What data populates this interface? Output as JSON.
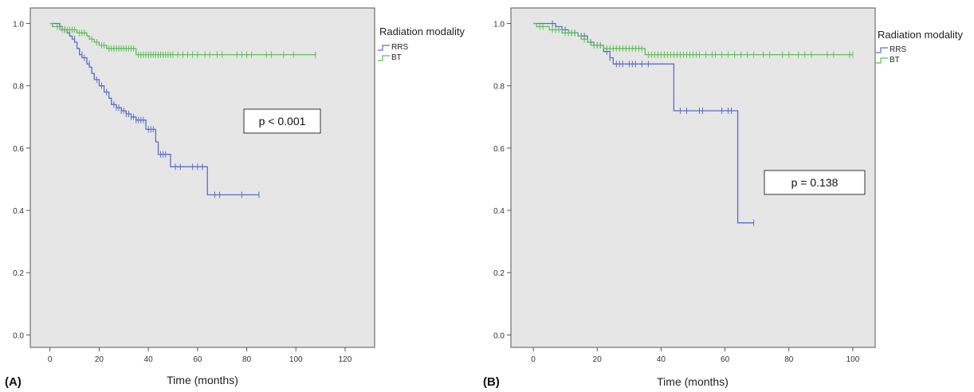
{
  "colors": {
    "plot_bg": "#e6e6e6",
    "frame": "#555555",
    "rrs": "#5b6ec9",
    "bt": "#5fbf58"
  },
  "chart_data": [
    {
      "type": "line",
      "panel_label": "(A)",
      "xlabel": "Time (months)",
      "ylabel": "",
      "xlim": [
        -8,
        132
      ],
      "ylim": [
        -0.04,
        1.05
      ],
      "xticks": [
        0,
        20,
        40,
        60,
        80,
        100,
        120
      ],
      "yticks": [
        "0.0",
        "0.2",
        "0.4",
        "0.6",
        "0.8",
        "1.0"
      ],
      "grid": false,
      "legend": {
        "title": "Radiation modality",
        "placement": "right-outside",
        "entries": [
          "RRS",
          "BT"
        ]
      },
      "annotation": "p < 0.001",
      "series": [
        {
          "name": "RRS",
          "steps": [
            [
              0,
              1.0
            ],
            [
              4,
              0.99
            ],
            [
              5,
              0.98
            ],
            [
              7,
              0.97
            ],
            [
              8,
              0.96
            ],
            [
              9,
              0.95
            ],
            [
              10,
              0.94
            ],
            [
              11,
              0.92
            ],
            [
              12,
              0.9
            ],
            [
              13,
              0.89
            ],
            [
              15,
              0.87
            ],
            [
              16,
              0.86
            ],
            [
              17,
              0.84
            ],
            [
              18,
              0.82
            ],
            [
              20,
              0.8
            ],
            [
              22,
              0.78
            ],
            [
              24,
              0.76
            ],
            [
              25,
              0.74
            ],
            [
              27,
              0.73
            ],
            [
              29,
              0.72
            ],
            [
              31,
              0.71
            ],
            [
              33,
              0.7
            ],
            [
              35,
              0.69
            ],
            [
              39,
              0.66
            ],
            [
              43,
              0.62
            ],
            [
              44,
              0.58
            ],
            [
              49,
              0.54
            ],
            [
              64,
              0.45
            ]
          ],
          "end": 85,
          "censored": [
            [
              6,
              0.98
            ],
            [
              8,
              0.97
            ],
            [
              10,
              0.95
            ],
            [
              11,
              0.93
            ],
            [
              12,
              0.91
            ],
            [
              13,
              0.9
            ],
            [
              14,
              0.89
            ],
            [
              15,
              0.88
            ],
            [
              16,
              0.87
            ],
            [
              17,
              0.85
            ],
            [
              18,
              0.83
            ],
            [
              19,
              0.82
            ],
            [
              21,
              0.8
            ],
            [
              23,
              0.78
            ],
            [
              25,
              0.75
            ],
            [
              26,
              0.74
            ],
            [
              27,
              0.73
            ],
            [
              28,
              0.73
            ],
            [
              29,
              0.72
            ],
            [
              30,
              0.72
            ],
            [
              31,
              0.71
            ],
            [
              32,
              0.71
            ],
            [
              33,
              0.7
            ],
            [
              34,
              0.7
            ],
            [
              35,
              0.69
            ],
            [
              36,
              0.69
            ],
            [
              37,
              0.69
            ],
            [
              38,
              0.69
            ],
            [
              40,
              0.66
            ],
            [
              41,
              0.66
            ],
            [
              42,
              0.66
            ],
            [
              45,
              0.58
            ],
            [
              46,
              0.58
            ],
            [
              47,
              0.58
            ],
            [
              51,
              0.54
            ],
            [
              53,
              0.54
            ],
            [
              58,
              0.54
            ],
            [
              60,
              0.54
            ],
            [
              62,
              0.54
            ],
            [
              67,
              0.45
            ],
            [
              69,
              0.45
            ],
            [
              78,
              0.45
            ],
            [
              85,
              0.45
            ]
          ]
        },
        {
          "name": "BT",
          "steps": [
            [
              0,
              1.0
            ],
            [
              1,
              0.99
            ],
            [
              4,
              0.98
            ],
            [
              11,
              0.97
            ],
            [
              15,
              0.96
            ],
            [
              16,
              0.95
            ],
            [
              18,
              0.94
            ],
            [
              20,
              0.93
            ],
            [
              23,
              0.92
            ],
            [
              35,
              0.9
            ]
          ],
          "end": 108,
          "censored": [
            [
              3,
              0.99
            ],
            [
              5,
              0.98
            ],
            [
              6,
              0.98
            ],
            [
              7,
              0.98
            ],
            [
              8,
              0.98
            ],
            [
              9,
              0.98
            ],
            [
              10,
              0.98
            ],
            [
              12,
              0.97
            ],
            [
              13,
              0.97
            ],
            [
              14,
              0.97
            ],
            [
              17,
              0.95
            ],
            [
              19,
              0.94
            ],
            [
              21,
              0.93
            ],
            [
              22,
              0.93
            ],
            [
              24,
              0.92
            ],
            [
              25,
              0.92
            ],
            [
              26,
              0.92
            ],
            [
              27,
              0.92
            ],
            [
              28,
              0.92
            ],
            [
              29,
              0.92
            ],
            [
              30,
              0.92
            ],
            [
              31,
              0.92
            ],
            [
              32,
              0.92
            ],
            [
              33,
              0.92
            ],
            [
              34,
              0.92
            ],
            [
              36,
              0.9
            ],
            [
              37,
              0.9
            ],
            [
              38,
              0.9
            ],
            [
              39,
              0.9
            ],
            [
              40,
              0.9
            ],
            [
              41,
              0.9
            ],
            [
              42,
              0.9
            ],
            [
              43,
              0.9
            ],
            [
              44,
              0.9
            ],
            [
              45,
              0.9
            ],
            [
              46,
              0.9
            ],
            [
              47,
              0.9
            ],
            [
              48,
              0.9
            ],
            [
              49,
              0.9
            ],
            [
              50,
              0.9
            ],
            [
              52,
              0.9
            ],
            [
              54,
              0.9
            ],
            [
              56,
              0.9
            ],
            [
              58,
              0.9
            ],
            [
              60,
              0.9
            ],
            [
              63,
              0.9
            ],
            [
              65,
              0.9
            ],
            [
              68,
              0.9
            ],
            [
              70,
              0.9
            ],
            [
              76,
              0.9
            ],
            [
              78,
              0.9
            ],
            [
              80,
              0.9
            ],
            [
              82,
              0.9
            ],
            [
              88,
              0.9
            ],
            [
              90,
              0.9
            ],
            [
              95,
              0.9
            ],
            [
              99,
              0.9
            ],
            [
              108,
              0.9
            ]
          ]
        }
      ]
    },
    {
      "type": "line",
      "panel_label": "(B)",
      "xlabel": "Time (months)",
      "ylabel": "",
      "xlim": [
        -7,
        107
      ],
      "ylim": [
        -0.04,
        1.05
      ],
      "xticks": [
        0,
        20,
        40,
        60,
        80,
        100
      ],
      "yticks": [
        "0.0",
        "0.2",
        "0.4",
        "0.6",
        "0.8",
        "1.0"
      ],
      "grid": false,
      "legend": {
        "title": "Radiation modality",
        "placement": "right-outside",
        "entries": [
          "RRS",
          "BT"
        ]
      },
      "annotation": "p = 0.138",
      "series": [
        {
          "name": "RRS",
          "steps": [
            [
              0,
              1.0
            ],
            [
              7,
              0.99
            ],
            [
              9,
              0.98
            ],
            [
              11,
              0.97
            ],
            [
              14,
              0.96
            ],
            [
              17,
              0.94
            ],
            [
              19,
              0.93
            ],
            [
              22,
              0.91
            ],
            [
              24,
              0.89
            ],
            [
              25,
              0.87
            ],
            [
              44,
              0.72
            ],
            [
              64,
              0.36
            ]
          ],
          "end": 69,
          "censored": [
            [
              6,
              1.0
            ],
            [
              10,
              0.98
            ],
            [
              12,
              0.97
            ],
            [
              13,
              0.97
            ],
            [
              15,
              0.96
            ],
            [
              16,
              0.96
            ],
            [
              18,
              0.94
            ],
            [
              20,
              0.93
            ],
            [
              21,
              0.93
            ],
            [
              23,
              0.91
            ],
            [
              24,
              0.89
            ],
            [
              26,
              0.87
            ],
            [
              27,
              0.87
            ],
            [
              28,
              0.87
            ],
            [
              30,
              0.87
            ],
            [
              31,
              0.87
            ],
            [
              32,
              0.87
            ],
            [
              34,
              0.87
            ],
            [
              36,
              0.87
            ],
            [
              46,
              0.72
            ],
            [
              48,
              0.72
            ],
            [
              52,
              0.72
            ],
            [
              53,
              0.72
            ],
            [
              59,
              0.72
            ],
            [
              61,
              0.72
            ],
            [
              62,
              0.72
            ],
            [
              69,
              0.36
            ]
          ]
        },
        {
          "name": "BT",
          "steps": [
            [
              0,
              1.0
            ],
            [
              1,
              0.99
            ],
            [
              5,
              0.98
            ],
            [
              9,
              0.97
            ],
            [
              14,
              0.96
            ],
            [
              15,
              0.95
            ],
            [
              17,
              0.94
            ],
            [
              18,
              0.93
            ],
            [
              22,
              0.92
            ],
            [
              35,
              0.9
            ]
          ],
          "end": 100,
          "censored": [
            [
              2,
              0.99
            ],
            [
              3,
              0.99
            ],
            [
              6,
              0.98
            ],
            [
              7,
              0.98
            ],
            [
              8,
              0.98
            ],
            [
              10,
              0.97
            ],
            [
              11,
              0.97
            ],
            [
              12,
              0.97
            ],
            [
              13,
              0.97
            ],
            [
              16,
              0.95
            ],
            [
              19,
              0.93
            ],
            [
              20,
              0.93
            ],
            [
              21,
              0.93
            ],
            [
              23,
              0.92
            ],
            [
              24,
              0.92
            ],
            [
              25,
              0.92
            ],
            [
              26,
              0.92
            ],
            [
              27,
              0.92
            ],
            [
              28,
              0.92
            ],
            [
              29,
              0.92
            ],
            [
              30,
              0.92
            ],
            [
              31,
              0.92
            ],
            [
              32,
              0.92
            ],
            [
              33,
              0.92
            ],
            [
              34,
              0.92
            ],
            [
              36,
              0.9
            ],
            [
              37,
              0.9
            ],
            [
              38,
              0.9
            ],
            [
              39,
              0.9
            ],
            [
              40,
              0.9
            ],
            [
              41,
              0.9
            ],
            [
              42,
              0.9
            ],
            [
              43,
              0.9
            ],
            [
              44,
              0.9
            ],
            [
              45,
              0.9
            ],
            [
              46,
              0.9
            ],
            [
              47,
              0.9
            ],
            [
              48,
              0.9
            ],
            [
              49,
              0.9
            ],
            [
              50,
              0.9
            ],
            [
              51,
              0.9
            ],
            [
              52,
              0.9
            ],
            [
              54,
              0.9
            ],
            [
              56,
              0.9
            ],
            [
              57,
              0.9
            ],
            [
              59,
              0.9
            ],
            [
              61,
              0.9
            ],
            [
              63,
              0.9
            ],
            [
              65,
              0.9
            ],
            [
              67,
              0.9
            ],
            [
              69,
              0.9
            ],
            [
              72,
              0.9
            ],
            [
              74,
              0.9
            ],
            [
              78,
              0.9
            ],
            [
              80,
              0.9
            ],
            [
              83,
              0.9
            ],
            [
              85,
              0.9
            ],
            [
              87,
              0.9
            ],
            [
              92,
              0.9
            ],
            [
              94,
              0.9
            ],
            [
              99,
              0.9
            ],
            [
              100,
              0.9
            ]
          ]
        }
      ]
    }
  ]
}
